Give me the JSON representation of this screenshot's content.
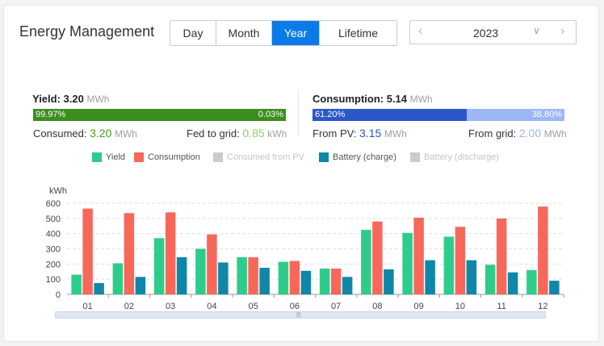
{
  "header": {
    "title": "Energy Management",
    "tabs": [
      {
        "label": "Day",
        "active": false
      },
      {
        "label": "Month",
        "active": false
      },
      {
        "label": "Year",
        "active": true
      },
      {
        "label": "Lifetime",
        "active": false
      }
    ],
    "year": "2023",
    "prev_icon": "chevron-left-icon",
    "next_icon": "chevron-right-icon",
    "dropdown_icon": "chevron-down-icon"
  },
  "yield": {
    "label": "Yield:",
    "value": "3.20",
    "unit": "MWh",
    "consumed_pct_text": "99.97%",
    "fed_pct_text": "0.03%",
    "consumed_pct": 99.97,
    "consumed_label": "Consumed:",
    "consumed_value": "3.20",
    "consumed_unit": "MWh",
    "fed_label": "Fed to grid:",
    "fed_value": "0.85",
    "fed_unit": "kWh"
  },
  "consumption": {
    "label": "Consumption:",
    "value": "5.14",
    "unit": "MWh",
    "pv_pct_text": "61.20%",
    "grid_pct_text": "38.80%",
    "pv_pct": 61.2,
    "pv_label": "From PV:",
    "pv_value": "3.15",
    "pv_unit": "MWh",
    "grid_label": "From grid:",
    "grid_value": "2.00",
    "grid_unit": "MWh"
  },
  "colors": {
    "yield": "#2ecc8a",
    "consumption": "#f7685b",
    "consumed_from_pv": "#cccccc",
    "battery_charge": "#0f87a8",
    "battery_discharge": "#cccccc",
    "bar_consumed": "#3c8e1e",
    "bar_fed": "#8fd160",
    "bar_pv": "#2b58c8",
    "bar_grid": "#9db6f6"
  },
  "chart_data": {
    "type": "bar",
    "ylabel": "kWh",
    "ylim": [
      0,
      600
    ],
    "yticks": [
      0,
      100,
      200,
      300,
      400,
      500,
      600
    ],
    "categories": [
      "01",
      "02",
      "03",
      "04",
      "05",
      "06",
      "07",
      "08",
      "09",
      "10",
      "11",
      "12"
    ],
    "legend": [
      {
        "name": "Yield",
        "enabled": true
      },
      {
        "name": "Consumption",
        "enabled": true
      },
      {
        "name": "Consumed from PV",
        "enabled": false
      },
      {
        "name": "Battery (charge)",
        "enabled": true
      },
      {
        "name": "Battery (discharge)",
        "enabled": false
      }
    ],
    "series": [
      {
        "name": "Yield",
        "values": [
          130,
          205,
          370,
          300,
          245,
          215,
          170,
          425,
          405,
          380,
          195,
          160
        ]
      },
      {
        "name": "Consumption",
        "values": [
          565,
          535,
          540,
          395,
          245,
          220,
          170,
          480,
          505,
          445,
          500,
          578
        ]
      },
      {
        "name": "Battery (charge)",
        "values": [
          75,
          115,
          245,
          210,
          175,
          155,
          115,
          165,
          225,
          225,
          145,
          90
        ]
      }
    ],
    "grid": true
  }
}
